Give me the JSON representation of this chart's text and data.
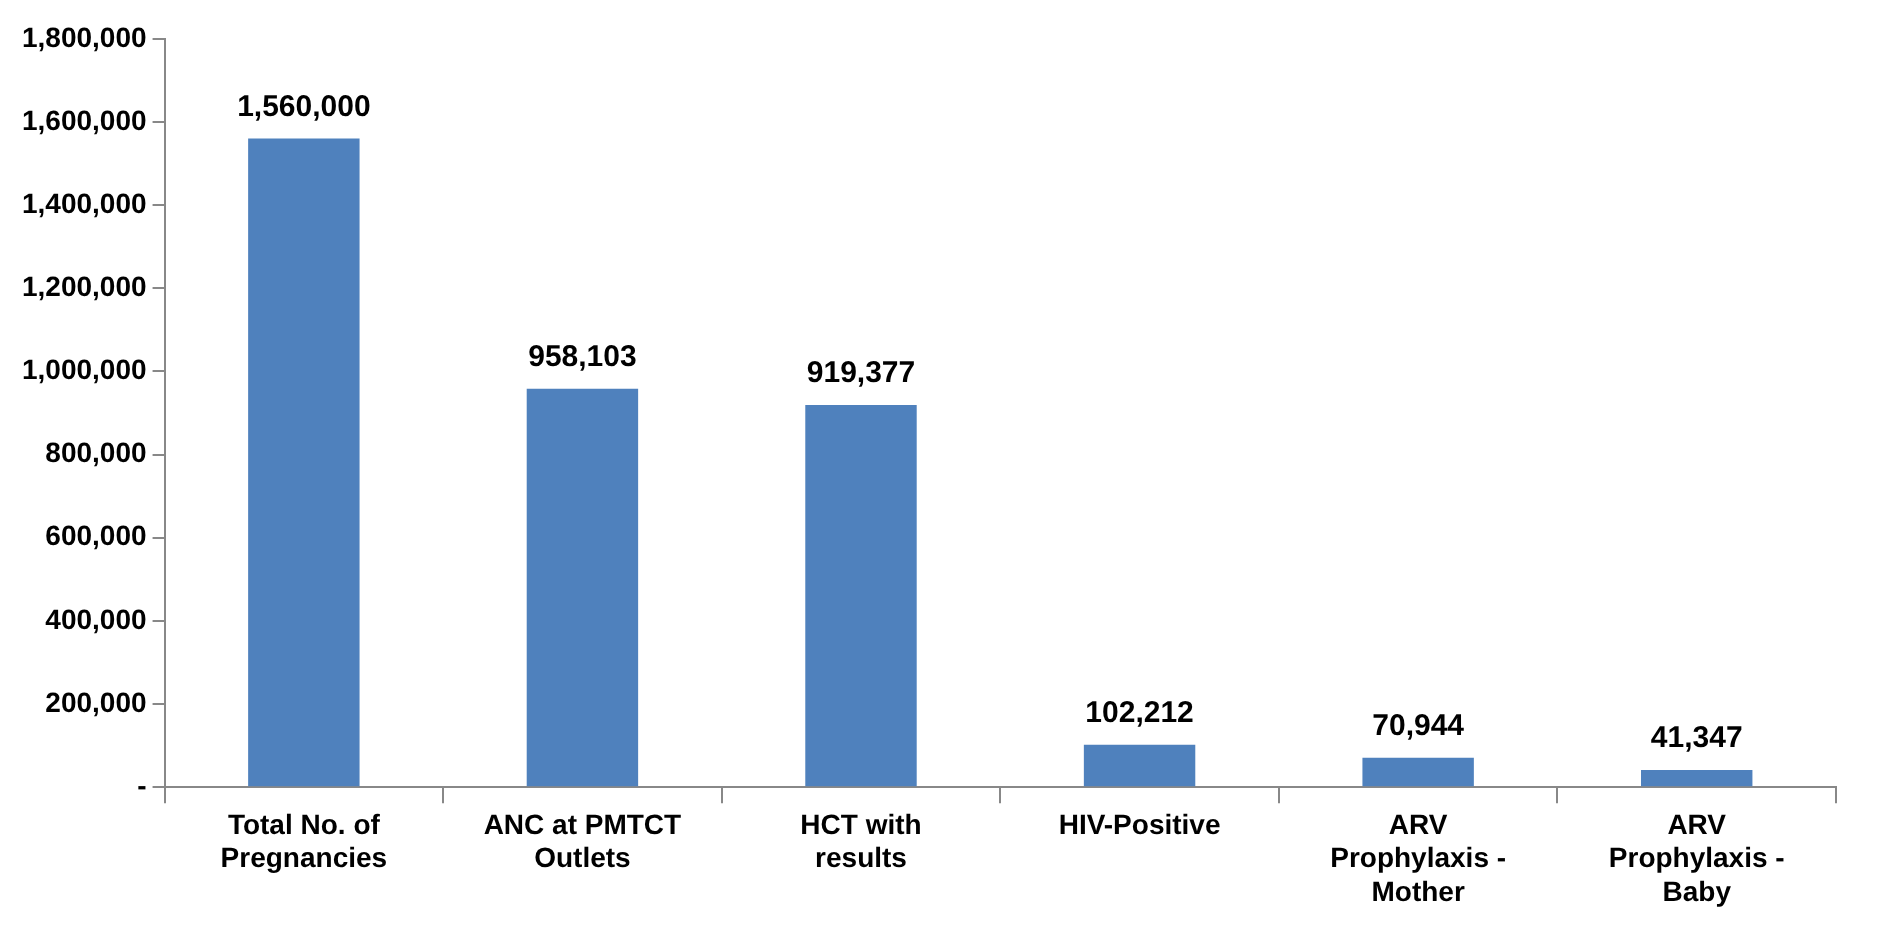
{
  "chart_data": {
    "type": "bar",
    "categories": [
      "Total No. of Pregnancies",
      "ANC at PMTCT Outlets",
      "HCT with results",
      "HIV-Positive",
      "ARV Prophylaxis - Mother",
      "ARV Prophylaxis - Baby"
    ],
    "values": [
      1560000,
      958103,
      919377,
      102212,
      70944,
      41347
    ],
    "color": "#4f81bd",
    "ylim": [
      0,
      1800000
    ],
    "value_labels": [
      "1,560,000",
      "958,103",
      "919,377",
      "102,212",
      "70,944",
      "41,347"
    ],
    "yticks": [
      {
        "value": 0,
        "label": "-"
      },
      {
        "value": 200000,
        "label": "200,000"
      },
      {
        "value": 400000,
        "label": "400,000"
      },
      {
        "value": 600000,
        "label": "600,000"
      },
      {
        "value": 800000,
        "label": "800,000"
      },
      {
        "value": 1000000,
        "label": "1,000,000"
      },
      {
        "value": 1200000,
        "label": "1,200,000"
      },
      {
        "value": 1400000,
        "label": "1,400,000"
      },
      {
        "value": 1600000,
        "label": "1,600,000"
      },
      {
        "value": 1800000,
        "label": "1,800,000"
      }
    ],
    "grid": false,
    "legend": false
  }
}
